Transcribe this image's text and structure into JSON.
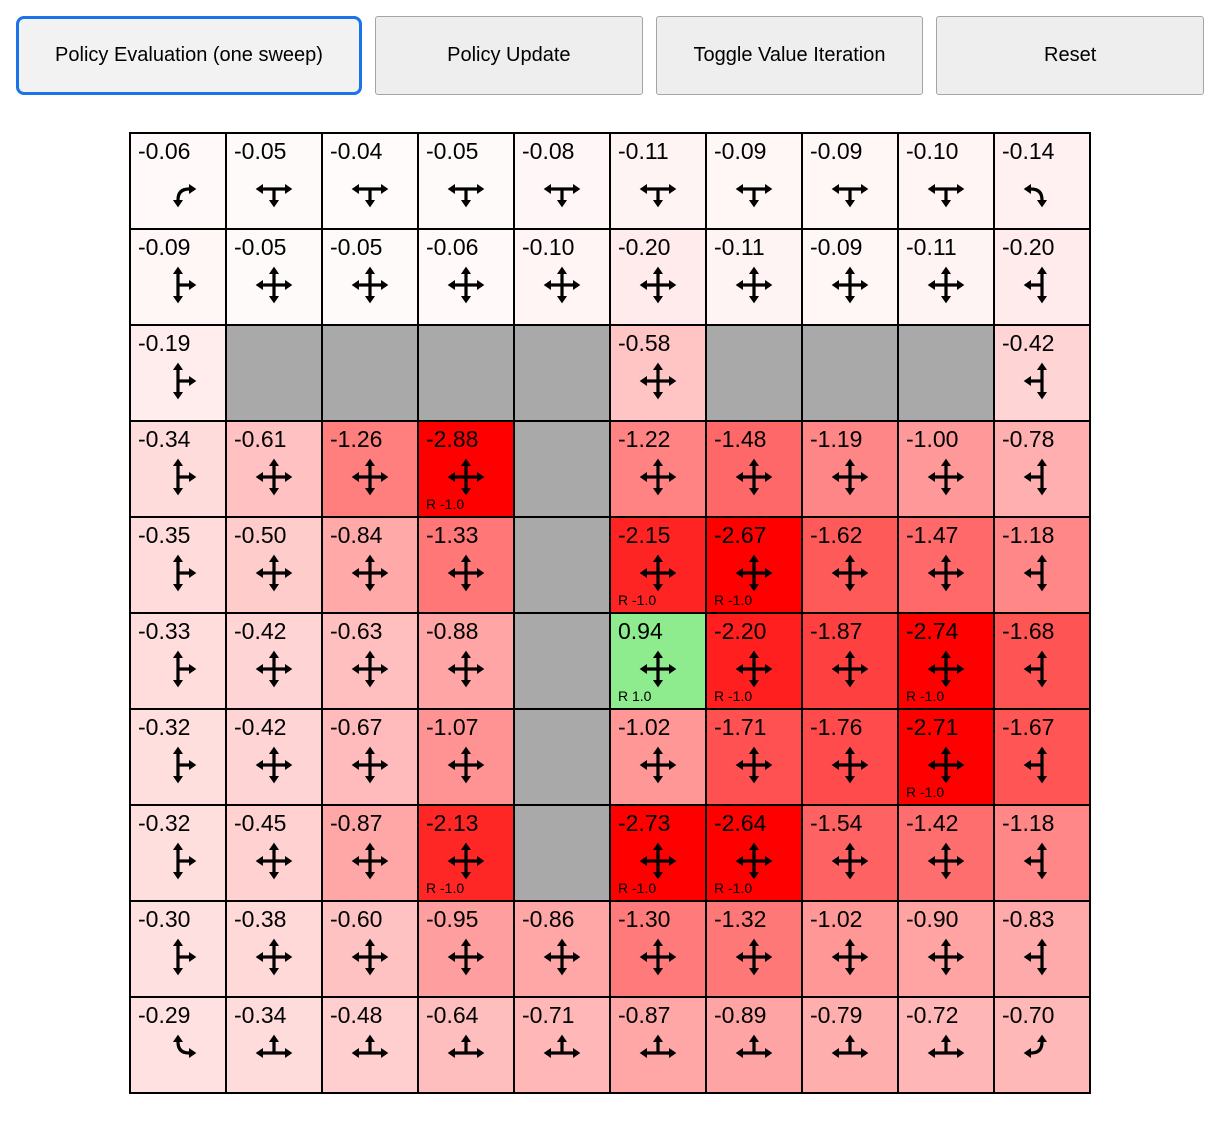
{
  "toolbar": {
    "buttons": [
      {
        "label": "Policy Evaluation (one sweep)",
        "active": true
      },
      {
        "label": "Policy Update",
        "active": false
      },
      {
        "label": "Toggle Value Iteration",
        "active": false
      },
      {
        "label": "Reset",
        "active": false
      }
    ]
  },
  "colors": {
    "active_button_border": "#1a73e8",
    "button_bg": "#eeeeee",
    "button_border": "#a5a5a5",
    "wall": "#a9a9a9",
    "arrow": "#000000",
    "goal_cell": "#8eec8e",
    "max_red": "#ff0000"
  },
  "grid": {
    "rows": 10,
    "cols": 10,
    "cells": [
      [
        {
          "v": "-0.06",
          "a": "DR"
        },
        {
          "v": "-0.05",
          "a": "LRD"
        },
        {
          "v": "-0.04",
          "a": "LRD"
        },
        {
          "v": "-0.05",
          "a": "LRD"
        },
        {
          "v": "-0.08",
          "a": "LRD"
        },
        {
          "v": "-0.11",
          "a": "LRD"
        },
        {
          "v": "-0.09",
          "a": "LRD"
        },
        {
          "v": "-0.09",
          "a": "LRD"
        },
        {
          "v": "-0.10",
          "a": "LRD"
        },
        {
          "v": "-0.14",
          "a": "DL"
        }
      ],
      [
        {
          "v": "-0.09",
          "a": "UDR"
        },
        {
          "v": "-0.05",
          "a": "UDLR"
        },
        {
          "v": "-0.05",
          "a": "UDLR"
        },
        {
          "v": "-0.06",
          "a": "UDLR"
        },
        {
          "v": "-0.10",
          "a": "UDLR"
        },
        {
          "v": "-0.20",
          "a": "UDLR"
        },
        {
          "v": "-0.11",
          "a": "UDLR"
        },
        {
          "v": "-0.09",
          "a": "UDLR"
        },
        {
          "v": "-0.11",
          "a": "UDLR"
        },
        {
          "v": "-0.20",
          "a": "UDL"
        }
      ],
      [
        {
          "v": "-0.19",
          "a": "UDR"
        },
        {
          "wall": true
        },
        {
          "wall": true
        },
        {
          "wall": true
        },
        {
          "wall": true
        },
        {
          "v": "-0.58",
          "a": "UDLR"
        },
        {
          "wall": true
        },
        {
          "wall": true
        },
        {
          "wall": true
        },
        {
          "v": "-0.42",
          "a": "UDL"
        }
      ],
      [
        {
          "v": "-0.34",
          "a": "UDR"
        },
        {
          "v": "-0.61",
          "a": "UDLR"
        },
        {
          "v": "-1.26",
          "a": "UDLR"
        },
        {
          "v": "-2.88",
          "a": "UDLR",
          "r": "R -1.0"
        },
        {
          "wall": true
        },
        {
          "v": "-1.22",
          "a": "UDLR"
        },
        {
          "v": "-1.48",
          "a": "UDLR"
        },
        {
          "v": "-1.19",
          "a": "UDLR"
        },
        {
          "v": "-1.00",
          "a": "UDLR"
        },
        {
          "v": "-0.78",
          "a": "UDL"
        }
      ],
      [
        {
          "v": "-0.35",
          "a": "UDR"
        },
        {
          "v": "-0.50",
          "a": "UDLR"
        },
        {
          "v": "-0.84",
          "a": "UDLR"
        },
        {
          "v": "-1.33",
          "a": "UDLR"
        },
        {
          "wall": true
        },
        {
          "v": "-2.15",
          "a": "UDLR",
          "r": "R -1.0"
        },
        {
          "v": "-2.67",
          "a": "UDLR",
          "r": "R -1.0"
        },
        {
          "v": "-1.62",
          "a": "UDLR"
        },
        {
          "v": "-1.47",
          "a": "UDLR"
        },
        {
          "v": "-1.18",
          "a": "UDL"
        }
      ],
      [
        {
          "v": "-0.33",
          "a": "UDR"
        },
        {
          "v": "-0.42",
          "a": "UDLR"
        },
        {
          "v": "-0.63",
          "a": "UDLR"
        },
        {
          "v": "-0.88",
          "a": "UDLR"
        },
        {
          "wall": true
        },
        {
          "v": "0.94",
          "a": "UDLR",
          "r": "R 1.0"
        },
        {
          "v": "-2.20",
          "a": "UDLR",
          "r": "R -1.0"
        },
        {
          "v": "-1.87",
          "a": "UDLR"
        },
        {
          "v": "-2.74",
          "a": "UDLR",
          "r": "R -1.0"
        },
        {
          "v": "-1.68",
          "a": "UDL"
        }
      ],
      [
        {
          "v": "-0.32",
          "a": "UDR"
        },
        {
          "v": "-0.42",
          "a": "UDLR"
        },
        {
          "v": "-0.67",
          "a": "UDLR"
        },
        {
          "v": "-1.07",
          "a": "UDLR"
        },
        {
          "wall": true
        },
        {
          "v": "-1.02",
          "a": "UDLR"
        },
        {
          "v": "-1.71",
          "a": "UDLR"
        },
        {
          "v": "-1.76",
          "a": "UDLR"
        },
        {
          "v": "-2.71",
          "a": "UDLR",
          "r": "R -1.0"
        },
        {
          "v": "-1.67",
          "a": "UDL"
        }
      ],
      [
        {
          "v": "-0.32",
          "a": "UDR"
        },
        {
          "v": "-0.45",
          "a": "UDLR"
        },
        {
          "v": "-0.87",
          "a": "UDLR"
        },
        {
          "v": "-2.13",
          "a": "UDLR",
          "r": "R -1.0"
        },
        {
          "wall": true
        },
        {
          "v": "-2.73",
          "a": "UDLR",
          "r": "R -1.0"
        },
        {
          "v": "-2.64",
          "a": "UDLR",
          "r": "R -1.0"
        },
        {
          "v": "-1.54",
          "a": "UDLR"
        },
        {
          "v": "-1.42",
          "a": "UDLR"
        },
        {
          "v": "-1.18",
          "a": "UDL"
        }
      ],
      [
        {
          "v": "-0.30",
          "a": "UDR"
        },
        {
          "v": "-0.38",
          "a": "UDLR"
        },
        {
          "v": "-0.60",
          "a": "UDLR"
        },
        {
          "v": "-0.95",
          "a": "UDLR"
        },
        {
          "v": "-0.86",
          "a": "UDLR"
        },
        {
          "v": "-1.30",
          "a": "UDLR"
        },
        {
          "v": "-1.32",
          "a": "UDLR"
        },
        {
          "v": "-1.02",
          "a": "UDLR"
        },
        {
          "v": "-0.90",
          "a": "UDLR"
        },
        {
          "v": "-0.83",
          "a": "UDL"
        }
      ],
      [
        {
          "v": "-0.29",
          "a": "UR"
        },
        {
          "v": "-0.34",
          "a": "LRU"
        },
        {
          "v": "-0.48",
          "a": "LRU"
        },
        {
          "v": "-0.64",
          "a": "LRU"
        },
        {
          "v": "-0.71",
          "a": "LRU"
        },
        {
          "v": "-0.87",
          "a": "LRU"
        },
        {
          "v": "-0.89",
          "a": "LRU"
        },
        {
          "v": "-0.79",
          "a": "LRU"
        },
        {
          "v": "-0.72",
          "a": "LRU"
        },
        {
          "v": "-0.70",
          "a": "UL"
        }
      ]
    ]
  }
}
